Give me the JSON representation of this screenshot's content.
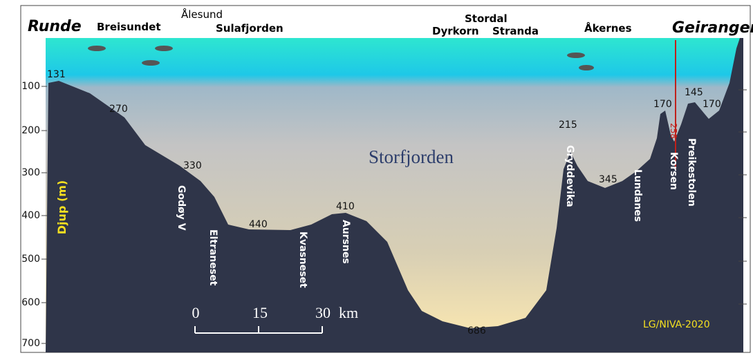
{
  "places": {
    "runde": "Runde",
    "breisundet": "Breisundet",
    "alesund": "Ålesund",
    "sulafjorden": "Sulafjorden",
    "stordal": "Stordal",
    "dyrkorn": "Dyrkorn",
    "stranda": "Stranda",
    "akernes": "Åkernes",
    "geiranger": "Geiranger"
  },
  "fjord_name": "Storfjorden",
  "axis_label": "Djup (m)",
  "ticks": [
    "100",
    "200",
    "300",
    "400",
    "500",
    "600",
    "700"
  ],
  "depths": [
    "131",
    "270",
    "330",
    "440",
    "410",
    "686",
    "215",
    "345",
    "170",
    "145",
    "170",
    "258"
  ],
  "sites": [
    "Godøy V",
    "Eltraneset",
    "Kvasneset",
    "Aursnes",
    "Gryddevika",
    "Lundanes",
    "Korsen",
    "Preikestolen"
  ],
  "scale": {
    "labels": [
      "0",
      "15",
      "30"
    ],
    "unit": "km"
  },
  "credit": "LG/NIVA-2020"
}
